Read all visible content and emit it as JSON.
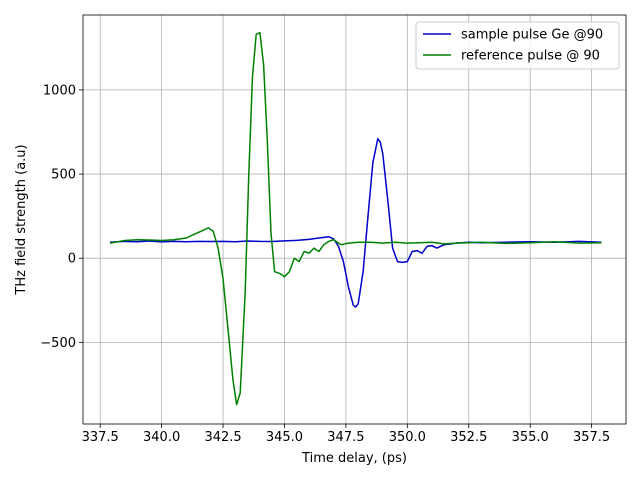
{
  "chart_data": {
    "type": "line",
    "title": "",
    "xlabel": "Time delay, (ps)",
    "ylabel": "THz field strength (a.u)",
    "xlim": [
      336.8,
      358.9
    ],
    "ylim": [
      -985,
      1445
    ],
    "xticks": [
      337.5,
      340.0,
      342.5,
      345.0,
      347.5,
      350.0,
      352.5,
      355.0,
      357.5
    ],
    "xtick_labels": [
      "337.5",
      "340.0",
      "342.5",
      "345.0",
      "347.5",
      "350.0",
      "352.5",
      "355.0",
      "357.5"
    ],
    "yticks": [
      -500,
      0,
      500,
      1000
    ],
    "ytick_labels": [
      "−500",
      "0",
      "500",
      "1000"
    ],
    "grid": true,
    "legend_position": "upper right",
    "series": [
      {
        "name": "sample pulse Ge @90",
        "color": "#0000cc",
        "x": [
          337.9,
          338.5,
          339.0,
          339.5,
          340.0,
          340.5,
          341.0,
          341.5,
          342.0,
          342.5,
          343.0,
          343.5,
          344.0,
          344.5,
          345.0,
          345.5,
          346.0,
          346.4,
          346.8,
          347.0,
          347.2,
          347.4,
          347.6,
          347.8,
          347.9,
          348.0,
          348.2,
          348.4,
          348.6,
          348.8,
          348.9,
          349.0,
          349.2,
          349.4,
          349.6,
          349.8,
          350.0,
          350.2,
          350.4,
          350.6,
          350.8,
          351.0,
          351.2,
          351.5,
          352.0,
          352.5,
          353.0,
          354.0,
          355.0,
          356.0,
          357.0,
          357.9
        ],
        "y": [
          95,
          100,
          98,
          102,
          97,
          100,
          98,
          100,
          99,
          100,
          98,
          102,
          100,
          99,
          103,
          106,
          112,
          120,
          128,
          115,
          70,
          -20,
          -170,
          -280,
          -290,
          -270,
          -80,
          250,
          570,
          710,
          690,
          620,
          350,
          60,
          -20,
          -25,
          -20,
          40,
          45,
          30,
          70,
          75,
          60,
          80,
          90,
          95,
          92,
          95,
          98,
          95,
          100,
          95
        ]
      },
      {
        "name": "reference pulse @ 90",
        "color": "#008000",
        "x": [
          337.9,
          338.5,
          339.0,
          339.5,
          340.0,
          340.5,
          341.0,
          341.3,
          341.6,
          341.9,
          342.1,
          342.3,
          342.5,
          342.7,
          342.9,
          343.05,
          343.2,
          343.4,
          343.55,
          343.7,
          343.85,
          344.0,
          344.15,
          344.3,
          344.45,
          344.6,
          344.8,
          345.0,
          345.2,
          345.4,
          345.6,
          345.8,
          346.0,
          346.2,
          346.4,
          346.6,
          346.8,
          347.0,
          347.3,
          347.6,
          348.0,
          348.5,
          349.0,
          349.5,
          350.0,
          350.5,
          351.0,
          351.5,
          352.0,
          353.0,
          354.0,
          355.0,
          356.0,
          357.0,
          357.9
        ],
        "y": [
          90,
          105,
          110,
          108,
          105,
          110,
          120,
          140,
          160,
          180,
          160,
          60,
          -120,
          -420,
          -720,
          -870,
          -800,
          -200,
          500,
          1080,
          1330,
          1340,
          1150,
          700,
          150,
          -80,
          -90,
          -110,
          -80,
          0,
          -20,
          40,
          30,
          60,
          40,
          80,
          100,
          110,
          80,
          90,
          95,
          95,
          90,
          95,
          90,
          92,
          95,
          85,
          90,
          95,
          88,
          92,
          98,
          90,
          92
        ]
      }
    ]
  }
}
